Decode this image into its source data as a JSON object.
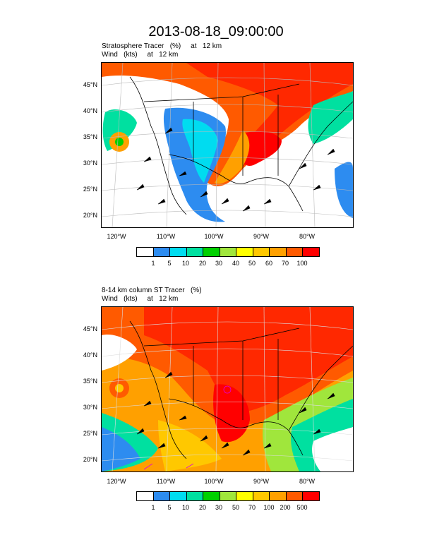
{
  "title": "2013-08-18_09:00:00",
  "palette": [
    "#ffffff",
    "#2d8cf0",
    "#00dcf0",
    "#00e0a0",
    "#00d000",
    "#a0e63c",
    "#ffff00",
    "#ffc800",
    "#ffa000",
    "#ff5a00",
    "#ff0000"
  ],
  "panels": [
    {
      "line1": "Stratosphere Tracer   (%)     at   12 km",
      "line2": "Wind   (kts)     at   12 km",
      "lat_labels": [
        "45°N",
        "40°N",
        "35°N",
        "30°N",
        "25°N",
        "20°N"
      ],
      "lon_labels": [
        "120°W",
        "110°W",
        "100°W",
        "90°W",
        "80°W"
      ],
      "colorbar_labels": [
        "1",
        "5",
        "10",
        "20",
        "30",
        "40",
        "50",
        "60",
        "70",
        "100"
      ]
    },
    {
      "line1": "8-14 km column ST Tracer   (%)",
      "line2": "Wind   (kts)     at   12 km",
      "lat_labels": [
        "45°N",
        "40°N",
        "35°N",
        "30°N",
        "25°N",
        "20°N"
      ],
      "lon_labels": [
        "120°W",
        "110°W",
        "100°W",
        "90°W",
        "80°W"
      ],
      "colorbar_labels": [
        "1",
        "5",
        "10",
        "20",
        "30",
        "50",
        "70",
        "100",
        "200",
        "500"
      ]
    }
  ]
}
